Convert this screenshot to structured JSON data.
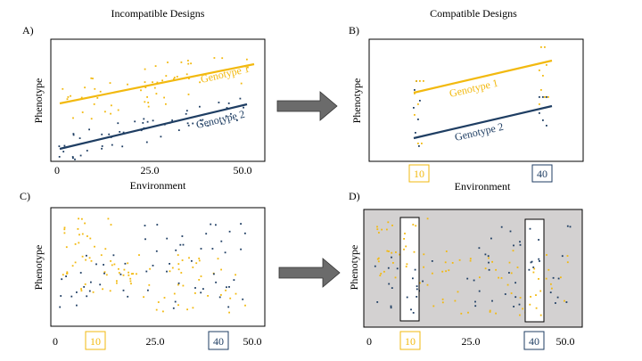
{
  "headings": {
    "left": "Incompatible Designs",
    "right": "Compatible Designs"
  },
  "panels": {
    "A": {
      "label": "A)",
      "ylabel": "Phenotype",
      "xlabel": "Environment",
      "ticks": [
        "0",
        "25.0",
        "50.0"
      ],
      "g1_label": "Genotype 1",
      "g2_label": "Genotype 2"
    },
    "B": {
      "label": "B)",
      "ylabel": "Phenotype",
      "xlabel": "Environment",
      "ticks": [
        "10",
        "40"
      ],
      "g1_label": "Genotype 1",
      "g2_label": "Genotype 2"
    },
    "C": {
      "label": "C)",
      "ylabel": "Phenotype",
      "ticks": [
        "0",
        "10",
        "25.0",
        "40",
        "50.0"
      ]
    },
    "D": {
      "label": "D)",
      "ylabel": "Phenotype",
      "ticks": [
        "0",
        "10",
        "25.0",
        "40",
        "50.0"
      ]
    }
  },
  "colors": {
    "genotype1": "#f2b90f",
    "genotype2": "#1f3e63",
    "arrow": "#6b6b6b",
    "shade": "#d3d1d1",
    "tick10": "#f2b90f",
    "tick40": "#1f3e63"
  },
  "icons": [
    "right-arrow-icon",
    "right-arrow-icon"
  ]
}
